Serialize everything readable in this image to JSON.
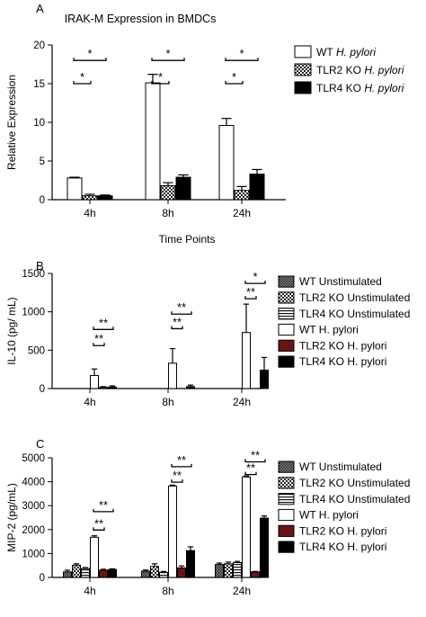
{
  "chart_data": [
    {
      "type": "bar",
      "panel_label": "A",
      "title": "IRAK-M Expression in BMDCs",
      "xlabel": "Time Points",
      "ylabel": "Relative Expression",
      "ylim": [
        0,
        20
      ],
      "yticks": [
        "0",
        "5",
        "10",
        "15",
        "20"
      ],
      "categories": [
        "4h",
        "8h",
        "24h"
      ],
      "legend_position": "right",
      "series": [
        {
          "name": "WT",
          "name_italic": "H. pylori",
          "pattern": "white",
          "values": [
            2.8,
            15.1,
            9.6
          ],
          "errors": [
            0.1,
            1.1,
            0.9
          ]
        },
        {
          "name": "TLR2 KO",
          "name_italic": "H. pylori",
          "pattern": "check",
          "values": [
            0.5,
            1.8,
            1.2
          ],
          "errors": [
            0.2,
            0.4,
            0.5
          ]
        },
        {
          "name": "TLR4 KO",
          "name_italic": "H. pylori",
          "pattern": "black",
          "values": [
            0.5,
            2.9,
            3.3
          ],
          "errors": [
            0.1,
            0.3,
            0.6
          ]
        }
      ],
      "significance": [
        {
          "category": 0,
          "from": 0,
          "to": 2,
          "level": 18.0,
          "label": "*"
        },
        {
          "category": 0,
          "from": 0,
          "to": 1,
          "level": 15.0,
          "label": "*"
        },
        {
          "category": 1,
          "from": 0,
          "to": 2,
          "level": 18.0,
          "label": "*"
        },
        {
          "category": 1,
          "from": 0,
          "to": 1,
          "level": 15.0,
          "label": "*"
        },
        {
          "category": 2,
          "from": 0,
          "to": 2,
          "level": 18.0,
          "label": "*"
        },
        {
          "category": 2,
          "from": 0,
          "to": 1,
          "level": 15.0,
          "label": "*"
        }
      ]
    },
    {
      "type": "bar",
      "panel_label": "B",
      "title": "",
      "xlabel": "",
      "ylabel": "IL-10 (pg/ mL)",
      "ylim": [
        0,
        1500
      ],
      "yticks": [
        "0",
        "500",
        "1000",
        "1500"
      ],
      "categories": [
        "4h",
        "8h",
        "24h"
      ],
      "legend_position": "right",
      "series": [
        {
          "name": "WT Unstimulated",
          "name_italic": "",
          "pattern": "check-dark",
          "values": [
            0,
            0,
            0
          ],
          "errors": [
            0,
            0,
            0
          ]
        },
        {
          "name": "TLR2 KO Unstimulated",
          "name_italic": "",
          "pattern": "check",
          "values": [
            0,
            0,
            0
          ],
          "errors": [
            0,
            0,
            0
          ]
        },
        {
          "name": "TLR4 KO Unstimulated",
          "name_italic": "",
          "pattern": "lines",
          "values": [
            0,
            0,
            0
          ],
          "errors": [
            0,
            0,
            0
          ]
        },
        {
          "name": "WT H. pylori",
          "name_italic": "",
          "pattern": "white",
          "values": [
            170,
            330,
            730
          ],
          "errors": [
            85,
            190,
            370
          ]
        },
        {
          "name": "TLR2 KO H. pylori",
          "name_italic": "",
          "pattern": "darkred",
          "values": [
            15,
            0,
            0
          ],
          "errors": [
            10,
            0,
            0
          ]
        },
        {
          "name": "TLR4 KO H. pylori",
          "name_italic": "",
          "pattern": "black",
          "values": [
            20,
            25,
            240
          ],
          "errors": [
            15,
            20,
            165
          ]
        }
      ],
      "significance": [
        {
          "category": 0,
          "from": 3,
          "to": 5,
          "level": 770,
          "label": "**"
        },
        {
          "category": 0,
          "from": 3,
          "to": 4,
          "level": 560,
          "label": "**"
        },
        {
          "category": 1,
          "from": 3,
          "to": 5,
          "level": 970,
          "label": "**"
        },
        {
          "category": 1,
          "from": 3,
          "to": 4,
          "level": 780,
          "label": "**"
        },
        {
          "category": 2,
          "from": 3,
          "to": 5,
          "level": 1370,
          "label": "*"
        },
        {
          "category": 2,
          "from": 3,
          "to": 4,
          "level": 1170,
          "label": "**"
        }
      ]
    },
    {
      "type": "bar",
      "panel_label": "C",
      "title": "",
      "xlabel": "",
      "ylabel": "MIP-2 (pg/mL)",
      "ylim": [
        0,
        5000
      ],
      "yticks": [
        "0",
        "1000",
        "2000",
        "3000",
        "4000",
        "5000"
      ],
      "categories": [
        "4h",
        "8h",
        "24h"
      ],
      "legend_position": "right",
      "series": [
        {
          "name": "WT Unstimulated",
          "name_italic": "",
          "pattern": "check-dark",
          "values": [
            230,
            260,
            540
          ],
          "errors": [
            70,
            50,
            60
          ]
        },
        {
          "name": "TLR2 KO Unstimulated",
          "name_italic": "",
          "pattern": "check",
          "values": [
            510,
            460,
            570
          ],
          "errors": [
            60,
            110,
            70
          ]
        },
        {
          "name": "TLR4 KO Unstimulated",
          "name_italic": "",
          "pattern": "lines",
          "values": [
            370,
            210,
            620
          ],
          "errors": [
            40,
            40,
            50
          ]
        },
        {
          "name": "WT H. pylori",
          "name_italic": "",
          "pattern": "white",
          "values": [
            1680,
            3820,
            4200
          ],
          "errors": [
            60,
            40,
            40
          ]
        },
        {
          "name": "TLR2 KO H. pylori",
          "name_italic": "",
          "pattern": "darkred",
          "values": [
            300,
            400,
            230
          ],
          "errors": [
            40,
            80,
            20
          ]
        },
        {
          "name": "TLR4 KO H. pylori",
          "name_italic": "",
          "pattern": "black",
          "values": [
            330,
            1120,
            2480
          ],
          "errors": [
            30,
            160,
            90
          ]
        }
      ],
      "significance": [
        {
          "category": 0,
          "from": 3,
          "to": 5,
          "level": 2750,
          "label": "**"
        },
        {
          "category": 0,
          "from": 3,
          "to": 4,
          "level": 1980,
          "label": "**"
        },
        {
          "category": 1,
          "from": 3,
          "to": 5,
          "level": 4630,
          "label": "**"
        },
        {
          "category": 1,
          "from": 3,
          "to": 4,
          "level": 3980,
          "label": "**"
        },
        {
          "category": 2,
          "from": 3,
          "to": 5,
          "level": 4830,
          "label": "**"
        },
        {
          "category": 2,
          "from": 3,
          "to": 4,
          "level": 4300,
          "label": "**"
        }
      ]
    }
  ]
}
